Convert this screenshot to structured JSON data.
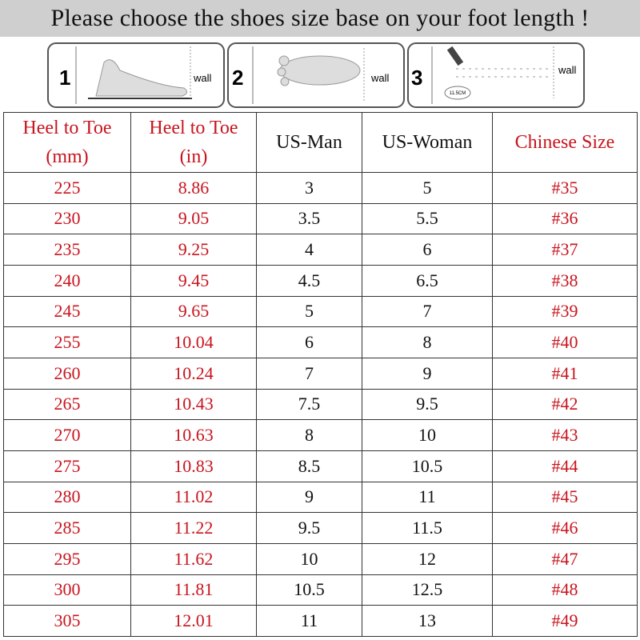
{
  "title": "Please choose the shoes size base on your foot length !",
  "steps": [
    {
      "number": "1",
      "label": "wall"
    },
    {
      "number": "2",
      "label": "wall"
    },
    {
      "number": "3",
      "label": "wall",
      "ruler": "11.5CM"
    }
  ],
  "table": {
    "header": [
      [
        "Heel to Toe",
        "(mm)"
      ],
      [
        "Heel to Toe",
        "(in)"
      ],
      [
        "US-Man"
      ],
      [
        "US-Woman"
      ],
      [
        "Chinese Size"
      ]
    ],
    "rows": [
      [
        "225",
        "8.86",
        "3",
        "5",
        "#35"
      ],
      [
        "230",
        "9.05",
        "3.5",
        "5.5",
        "#36"
      ],
      [
        "235",
        "9.25",
        "4",
        "6",
        "#37"
      ],
      [
        "240",
        "9.45",
        "4.5",
        "6.5",
        "#38"
      ],
      [
        "245",
        "9.65",
        "5",
        "7",
        "#39"
      ],
      [
        "255",
        "10.04",
        "6",
        "8",
        "#40"
      ],
      [
        "260",
        "10.24",
        "7",
        "9",
        "#41"
      ],
      [
        "265",
        "10.43",
        "7.5",
        "9.5",
        "#42"
      ],
      [
        "270",
        "10.63",
        "8",
        "10",
        "#43"
      ],
      [
        "275",
        "10.83",
        "8.5",
        "10.5",
        "#44"
      ],
      [
        "280",
        "11.02",
        "9",
        "11",
        "#45"
      ],
      [
        "285",
        "11.22",
        "9.5",
        "11.5",
        "#46"
      ],
      [
        "295",
        "11.62",
        "10",
        "12",
        "#47"
      ],
      [
        "300",
        "11.81",
        "10.5",
        "12.5",
        "#48"
      ],
      [
        "305",
        "12.01",
        "11",
        "13",
        "#49"
      ]
    ]
  }
}
